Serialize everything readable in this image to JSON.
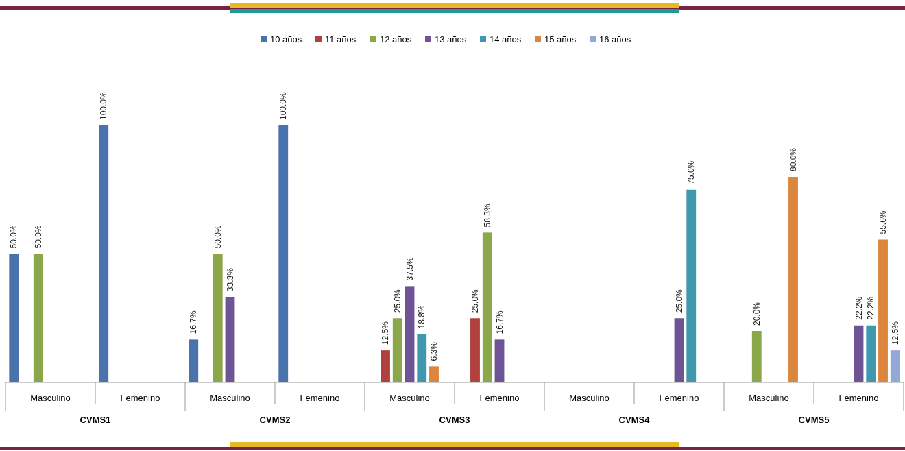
{
  "chart_data": [
    {
      "type": "bar",
      "xlabel": "CVMS1",
      "categories": [
        "Masculino",
        "Femenino"
      ],
      "data_labels": true,
      "legend": "top",
      "series": [
        {
          "name": "10 años",
          "color": "#4a73ae",
          "values": [
            50,
            100
          ],
          "value_labels": [
            "50.0%",
            "100.0%"
          ]
        },
        {
          "name": "11 años",
          "color": "#b0413e",
          "values": [
            null,
            null
          ],
          "value_labels": [
            null,
            null
          ]
        },
        {
          "name": "12 años",
          "color": "#8aa74a",
          "values": [
            50,
            null
          ],
          "value_labels": [
            "50.0%",
            null
          ]
        },
        {
          "name": "13 años",
          "color": "#6f5495",
          "values": [
            null,
            null
          ],
          "value_labels": [
            null,
            null
          ]
        },
        {
          "name": "14 años",
          "color": "#3f98ad",
          "values": [
            null,
            null
          ],
          "value_labels": [
            null,
            null
          ]
        },
        {
          "name": "15 años",
          "color": "#dc853d",
          "values": [
            null,
            null
          ],
          "value_labels": [
            null,
            null
          ]
        },
        {
          "name": "16 años",
          "color": "#92a9d5",
          "values": [
            null,
            null
          ],
          "value_labels": [
            null,
            null
          ]
        }
      ]
    },
    {
      "type": "bar",
      "xlabel": "CVMS2",
      "categories": [
        "Masculino",
        "Femenino"
      ],
      "data_labels": true,
      "series": [
        {
          "color": "#4a73ae",
          "values": [
            16.7,
            100
          ],
          "value_labels": [
            "16.7%",
            "100.0%"
          ]
        },
        {
          "values": [
            null,
            null
          ],
          "value_labels": [
            null,
            null
          ]
        },
        {
          "color": "#8aa74a",
          "values": [
            50,
            null
          ],
          "value_labels": [
            "50.0%",
            null
          ]
        },
        {
          "color": "#6f5495",
          "values": [
            33.3,
            null
          ],
          "value_labels": [
            "33.3%",
            null
          ]
        },
        {
          "values": [
            null,
            null
          ],
          "value_labels": [
            null,
            null
          ]
        },
        {
          "values": [
            null,
            null
          ],
          "value_labels": [
            null,
            null
          ]
        },
        {
          "values": [
            null,
            null
          ],
          "value_labels": [
            null,
            null
          ]
        }
      ]
    },
    {
      "type": "bar",
      "xlabel": "CVMS3",
      "categories": [
        "Masculino",
        "Femenino"
      ],
      "data_labels": true,
      "series": [
        {
          "values": [
            null,
            null
          ],
          "value_labels": [
            null,
            null
          ]
        },
        {
          "color": "#b0413e",
          "values": [
            12.5,
            25
          ],
          "value_labels": [
            "12.5%",
            "25.0%"
          ]
        },
        {
          "color": "#8aa74a",
          "values": [
            25,
            58.3
          ],
          "value_labels": [
            "25.0%",
            "58.3%"
          ]
        },
        {
          "color": "#6f5495",
          "values": [
            37.5,
            16.7
          ],
          "value_labels": [
            "37.5%",
            "16.7%"
          ]
        },
        {
          "color": "#3f98ad",
          "values": [
            18.8,
            null
          ],
          "value_labels": [
            "18.8%",
            null
          ]
        },
        {
          "color": "#dc853d",
          "values": [
            6.3,
            null
          ],
          "value_labels": [
            "6.3%",
            null
          ]
        },
        {
          "values": [
            null,
            null
          ],
          "value_labels": [
            null,
            null
          ]
        }
      ]
    },
    {
      "type": "bar",
      "xlabel": "CVMS4",
      "categories": [
        "Masculino",
        "Femenino"
      ],
      "data_labels": true,
      "series": [
        {
          "values": [
            null,
            null
          ],
          "value_labels": [
            null,
            null
          ]
        },
        {
          "values": [
            null,
            null
          ],
          "value_labels": [
            null,
            null
          ]
        },
        {
          "values": [
            null,
            null
          ],
          "value_labels": [
            null,
            null
          ]
        },
        {
          "color": "#6f5495",
          "values": [
            null,
            25
          ],
          "value_labels": [
            null,
            "25.0%"
          ]
        },
        {
          "color": "#3f98ad",
          "values": [
            null,
            75
          ],
          "value_labels": [
            null,
            "75.0%"
          ]
        },
        {
          "values": [
            null,
            null
          ],
          "value_labels": [
            null,
            null
          ]
        },
        {
          "values": [
            null,
            null
          ],
          "value_labels": [
            null,
            null
          ]
        }
      ]
    },
    {
      "type": "bar",
      "xlabel": "CVMS5",
      "categories": [
        "Masculino",
        "Femenino"
      ],
      "data_labels": true,
      "series": [
        {
          "values": [
            null,
            null
          ],
          "value_labels": [
            null,
            null
          ]
        },
        {
          "values": [
            null,
            null
          ],
          "value_labels": [
            null,
            null
          ]
        },
        {
          "color": "#8aa74a",
          "values": [
            20,
            null
          ],
          "value_labels": [
            "20.0%",
            null
          ]
        },
        {
          "color": "#6f5495",
          "values": [
            null,
            22.2
          ],
          "value_labels": [
            null,
            "22.2%"
          ]
        },
        {
          "color": "#3f98ad",
          "values": [
            null,
            22.2
          ],
          "value_labels": [
            null,
            "22.2%"
          ]
        },
        {
          "color": "#dc853d",
          "values": [
            80,
            55.6
          ],
          "value_labels": [
            "80.0%",
            "55.6%"
          ]
        },
        {
          "color": "#92a9d5",
          "values": [
            null,
            12.5
          ],
          "value_labels": [
            null,
            "12.5%"
          ]
        }
      ]
    }
  ]
}
